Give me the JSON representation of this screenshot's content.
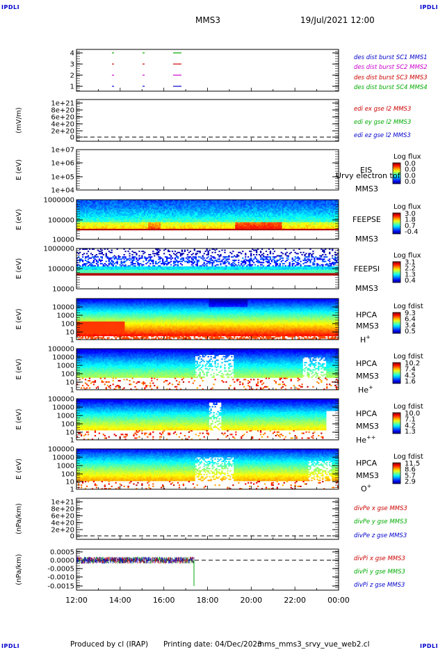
{
  "header": {
    "corner_label": "IPDLI",
    "title": "MMS3",
    "datetime": "19/Jul/2021 12:00"
  },
  "footer": {
    "produced_by": "Produced by cl (IRAP)",
    "printing_date": "Printing date: 04/Dec/2023",
    "script": "mms_mms3_srvy_vue_web2.cl"
  },
  "chart_data": [
    {
      "type": "line",
      "panel": "burst",
      "ticks": [
        "4",
        "3",
        "2",
        "1"
      ],
      "legend": [
        {
          "text": "des dist burst SC1 MMS1",
          "color": "#0000cc"
        },
        {
          "text": "des dist burst SC2 MMS2",
          "color": "#cc00cc"
        },
        {
          "text": "des dist burst SC3 MMS3",
          "color": "#cc0000"
        },
        {
          "text": "des dist burst SC4 MMS4",
          "color": "#00aa00"
        }
      ]
    },
    {
      "type": "line",
      "panel": "edi",
      "ylabel": "(mV/m)",
      "ticks": [
        "1e+21",
        "8e+20",
        "6e+20",
        "4e+20",
        "2e+20",
        "0"
      ],
      "legend": [
        {
          "text": "edi ex gse l2 MMS3",
          "color": "#cc0000"
        },
        {
          "text": "edi ey gse l2 MMS3",
          "color": "#00aa00"
        },
        {
          "text": "edi ez gse l2 MMS3",
          "color": "#0000cc"
        }
      ]
    },
    {
      "type": "heatmap",
      "panel": "eis",
      "ylabel": "E (eV)",
      "ticks": [
        "1e+07",
        "1e+06",
        "1e+05",
        "1e+04"
      ],
      "labels": [
        "EIS",
        "Urvy electron tof",
        "MMS3"
      ],
      "cbar_title": "Log flux",
      "cbar_ticks": [
        "0.0",
        "0.0",
        "0.0",
        "0.0"
      ]
    },
    {
      "type": "heatmap",
      "panel": "feepse",
      "ylabel": "E (eV)",
      "ticks": [
        "1000000",
        "100000",
        "10000"
      ],
      "labels": [
        "FEEPSE",
        "MMS3"
      ],
      "cbar_title": "Log flux",
      "cbar_ticks": [
        "3.0",
        "1.8",
        "0.7",
        "-0.4"
      ]
    },
    {
      "type": "heatmap",
      "panel": "feepsi",
      "ylabel": "E (eV)",
      "ticks": [
        "1000000",
        "100000",
        "10000"
      ],
      "labels": [
        "FEEPSI",
        "MMS3"
      ],
      "cbar_title": "Log flux",
      "cbar_ticks": [
        "3.1",
        "2.2",
        "1.3",
        "0.4"
      ]
    },
    {
      "type": "heatmap",
      "panel": "hpca_h",
      "ylabel": "E (eV)",
      "ticks": [
        "10000",
        "1000",
        "100",
        "10",
        "1"
      ],
      "labels": [
        "HPCA",
        "MMS3",
        "H+"
      ],
      "cbar_title": "Log fdist",
      "cbar_ticks": [
        "9.3",
        "6.4",
        "3.4",
        "0.5"
      ]
    },
    {
      "type": "heatmap",
      "panel": "hpca_he",
      "ylabel": "E (eV)",
      "ticks": [
        "100000",
        "10000",
        "1000",
        "100",
        "10",
        "1"
      ],
      "labels": [
        "HPCA",
        "MMS3",
        "He+"
      ],
      "cbar_title": "Log fdist",
      "cbar_ticks": [
        "10.2",
        "7.4",
        "4.5",
        "1.6"
      ]
    },
    {
      "type": "heatmap",
      "panel": "hpca_hepp",
      "ylabel": "E (eV)",
      "ticks": [
        "100000",
        "10000",
        "1000",
        "100",
        "10",
        "1"
      ],
      "labels": [
        "HPCA",
        "MMS3",
        "He++"
      ],
      "cbar_title": "Log fdist",
      "cbar_ticks": [
        "10.0",
        "7.1",
        "4.2",
        "1.3"
      ]
    },
    {
      "type": "heatmap",
      "panel": "hpca_o",
      "ylabel": "E (eV)",
      "ticks": [
        "100000",
        "10000",
        "1000",
        "100",
        "10",
        "1"
      ],
      "labels": [
        "HPCA",
        "MMS3",
        "O+"
      ],
      "cbar_title": "Log fdist",
      "cbar_ticks": [
        "11.5",
        "8.6",
        "5.7",
        "2.9"
      ]
    },
    {
      "type": "line",
      "panel": "divpe",
      "ylabel": "(nPa/km)",
      "ticks": [
        "1e+21",
        "8e+20",
        "6e+20",
        "4e+20",
        "2e+20",
        "0"
      ],
      "legend": [
        {
          "text": "divPe x gse MMS3",
          "color": "#cc0000"
        },
        {
          "text": "divPe y gse MMS3",
          "color": "#00aa00"
        },
        {
          "text": "divPe z gse MMS3",
          "color": "#0000cc"
        }
      ]
    },
    {
      "type": "line",
      "panel": "divpi",
      "ylabel": "(nPa/km)",
      "ticks": [
        "0.0005",
        "0.0000",
        "-0.0005",
        "-0.0010",
        "-0.0015"
      ],
      "legend": [
        {
          "text": "divPi x gse MMS3",
          "color": "#cc0000"
        },
        {
          "text": "divPi y gse MMS3",
          "color": "#00aa00"
        },
        {
          "text": "divPi z gse MMS3",
          "color": "#0000cc"
        }
      ]
    },
    {
      "type": "axis",
      "panel": "time",
      "x_ticks": [
        "12:00",
        "14:00",
        "16:00",
        "18:00",
        "20:00",
        "22:00",
        "00:00"
      ]
    }
  ]
}
